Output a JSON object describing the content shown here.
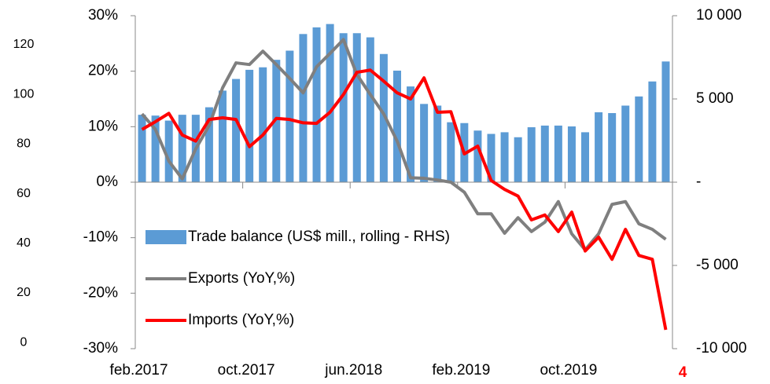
{
  "chart_data": {
    "type": "bar_line",
    "categories": [
      "feb.2017",
      null,
      null,
      null,
      null,
      null,
      null,
      null,
      "oct.2017",
      null,
      null,
      null,
      null,
      null,
      null,
      null,
      "jun.2018",
      null,
      null,
      null,
      null,
      null,
      null,
      null,
      "feb.2019",
      null,
      null,
      null,
      null,
      null,
      null,
      null,
      "oct.2019",
      null,
      null,
      null,
      null,
      null,
      null,
      null
    ],
    "series": [
      {
        "name": "Trade balance (US$ mill., rolling - RHS)",
        "color": "#5b9bd5",
        "kind": "bar",
        "axis": "y2",
        "values": [
          4050,
          4000,
          3700,
          4050,
          4050,
          4500,
          5500,
          6200,
          6750,
          6900,
          7350,
          7900,
          8900,
          9300,
          9500,
          8950,
          8950,
          8700,
          7700,
          6700,
          5750,
          4700,
          4600,
          3600,
          3550,
          3100,
          2900,
          3000,
          2700,
          3300,
          3400,
          3400,
          3350,
          3000,
          4200,
          4150,
          4600,
          5150,
          6050,
          7250
        ]
      },
      {
        "name": "Exports (YoY,%)",
        "color": "#7f7f7f",
        "kind": "line",
        "values": [
          12.3,
          9.5,
          3.8,
          0.6,
          6,
          10.2,
          17,
          21.5,
          21.2,
          23.6,
          21.2,
          18.7,
          16.1,
          20.8,
          23.2,
          25.7,
          19.4,
          15.8,
          12.3,
          7.4,
          0.8,
          0.7,
          0.4,
          0,
          -1.8,
          -5.7,
          -5.7,
          -9.2,
          -6.4,
          -8.9,
          -7.2,
          -3.5,
          -9.3,
          -12.2,
          -9.3,
          -4,
          -3.5,
          -7.5,
          -8.5,
          -10.3
        ]
      },
      {
        "name": "Imports (YoY,%)",
        "color": "#ff0000",
        "kind": "line",
        "values": [
          9.5,
          10.9,
          12.4,
          8.5,
          7.4,
          11.3,
          11.6,
          11.3,
          6.4,
          8.5,
          11.5,
          11.3,
          10.7,
          10.6,
          12.6,
          15.8,
          19.8,
          20.2,
          18.2,
          16.1,
          15,
          18.8,
          12.6,
          12.7,
          5.1,
          6.5,
          0.3,
          -1.3,
          -2.5,
          -6.8,
          -5.9,
          -8.9,
          -5.4,
          -12.4,
          -9.9,
          -13.9,
          -8.5,
          -13.2,
          -13.9,
          -26.6
        ]
      }
    ],
    "ylim": [
      -30,
      30
    ],
    "yticks": [
      {
        "value": 30,
        "label": "30%"
      },
      {
        "value": 20,
        "label": "20%"
      },
      {
        "value": 10,
        "label": "10%"
      },
      {
        "value": 0,
        "label": "0%"
      },
      {
        "value": -10,
        "label": "-10%"
      },
      {
        "value": -20,
        "label": "-20%"
      },
      {
        "value": -30,
        "label": "-30%"
      }
    ],
    "y2lim": [
      -10000,
      10000
    ],
    "y2ticks": [
      {
        "value": 10000,
        "label": "10 000"
      },
      {
        "value": 5000,
        "label": "5 000"
      },
      {
        "value": 0,
        "label": "-"
      },
      {
        "value": -5000,
        "label": "-5 000"
      },
      {
        "value": -10000,
        "label": "-10 000"
      }
    ],
    "left_labels": [
      120,
      100,
      80,
      60,
      40,
      20,
      0
    ],
    "annotation": "4",
    "legend": "inside-left"
  }
}
